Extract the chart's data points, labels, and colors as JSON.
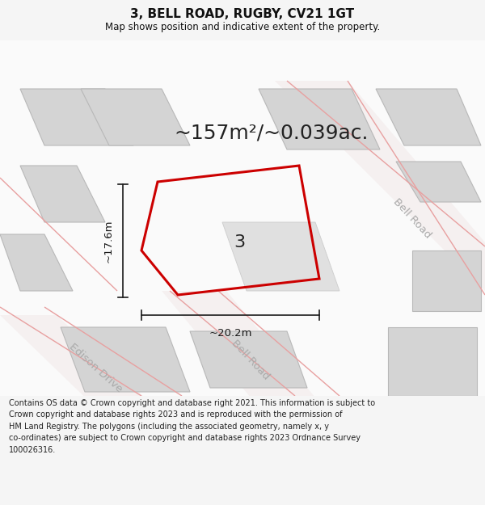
{
  "title": "3, BELL ROAD, RUGBY, CV21 1GT",
  "subtitle": "Map shows position and indicative extent of the property.",
  "area_text": "~157m²/~0.039ac.",
  "width_label": "~20.2m",
  "height_label": "~17.6m",
  "plot_label": "3",
  "footer_lines": [
    "Contains OS data © Crown copyright and database right 2021. This information is subject to",
    "Crown copyright and database rights 2023 and is reproduced with the permission of",
    "HM Land Registry. The polygons (including the associated geometry, namely x, y",
    "co-ordinates) are subject to Crown copyright and database rights 2023 Ordnance Survey",
    "100026316."
  ],
  "bg_color": "#f5f5f5",
  "map_bg": "#ffffff",
  "plot_outline_color": "#cc0000",
  "building_fill": "#d4d4d4",
  "building_edge": "#b8b8b8",
  "road_line_color": "#e8a0a0",
  "road_fill_color": "#f5f0f0",
  "road_label_color": "#aaaaaa",
  "dim_color": "#1a1a1a",
  "title_fontsize": 11,
  "subtitle_fontsize": 8.5,
  "area_fontsize": 18,
  "dim_fontsize": 9.5,
  "footer_fontsize": 7.0,
  "plot_label_fontsize": 16
}
